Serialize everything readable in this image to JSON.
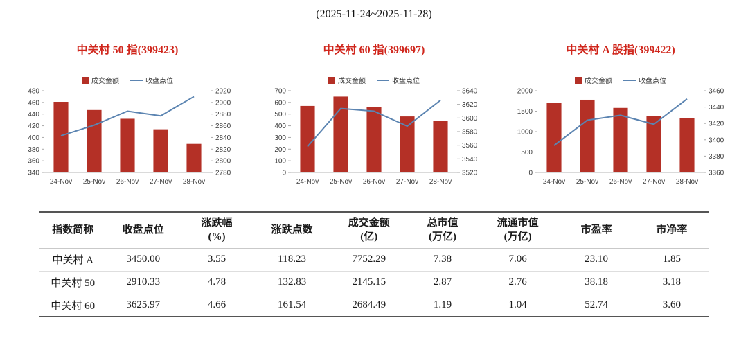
{
  "title": "(2025-11-24~2025-11-28)",
  "colors": {
    "accent_red": "#d0261c",
    "bar_red": "#b43026",
    "line_blue": "#5b84b1"
  },
  "chart_data": [
    {
      "type": "bar+line",
      "title": "中关村 50 指(399423)",
      "categories": [
        "24-Nov",
        "25-Nov",
        "26-Nov",
        "27-Nov",
        "28-Nov"
      ],
      "series": [
        {
          "name": "成交金额",
          "type": "bar",
          "axis": "left",
          "values": [
            461,
            447,
            432,
            414,
            389
          ]
        },
        {
          "name": "收盘点位",
          "type": "line",
          "axis": "right",
          "values": [
            2843,
            2861,
            2885,
            2877,
            2910
          ]
        }
      ],
      "left_axis": {
        "min": 340,
        "max": 480,
        "step": 20
      },
      "right_axis": {
        "min": 2780,
        "max": 2920,
        "step": 20
      },
      "legend_position": "top",
      "grid": false
    },
    {
      "type": "bar+line",
      "title": "中关村 60 指(399697)",
      "categories": [
        "24-Nov",
        "25-Nov",
        "26-Nov",
        "27-Nov",
        "28-Nov"
      ],
      "series": [
        {
          "name": "成交金额",
          "type": "bar",
          "axis": "left",
          "values": [
            570,
            650,
            560,
            480,
            440
          ]
        },
        {
          "name": "收盘点位",
          "type": "line",
          "axis": "right",
          "values": [
            3558,
            3614,
            3610,
            3588,
            3626
          ]
        }
      ],
      "left_axis": {
        "min": 0,
        "max": 700,
        "step": 100
      },
      "right_axis": {
        "min": 3520,
        "max": 3640,
        "step": 20
      },
      "legend_position": "top",
      "grid": false
    },
    {
      "type": "bar+line",
      "title": "中关村 A 股指(399422)",
      "categories": [
        "24-Nov",
        "25-Nov",
        "26-Nov",
        "27-Nov",
        "28-Nov"
      ],
      "series": [
        {
          "name": "成交金额",
          "type": "bar",
          "axis": "left",
          "values": [
            1700,
            1780,
            1580,
            1380,
            1330
          ]
        },
        {
          "name": "收盘点位",
          "type": "line",
          "axis": "right",
          "values": [
            3393,
            3424,
            3430,
            3419,
            3450
          ]
        }
      ],
      "left_axis": {
        "min": 0,
        "max": 2000,
        "step": 500
      },
      "right_axis": {
        "min": 3360,
        "max": 3460,
        "step": 20
      },
      "legend_position": "top",
      "grid": false
    }
  ],
  "table": {
    "headers": [
      {
        "line1": "指数简称",
        "line2": ""
      },
      {
        "line1": "收盘点位",
        "line2": ""
      },
      {
        "line1": "涨跌幅",
        "line2": "(%)"
      },
      {
        "line1": "涨跌点数",
        "line2": ""
      },
      {
        "line1": "成交金额",
        "line2": "(亿)"
      },
      {
        "line1": "总市值",
        "line2": "(万亿)"
      },
      {
        "line1": "流通市值",
        "line2": "(万亿)"
      },
      {
        "line1": "市盈率",
        "line2": ""
      },
      {
        "line1": "市净率",
        "line2": ""
      }
    ],
    "rows": [
      [
        "中关村 A",
        "3450.00",
        "3.55",
        "118.23",
        "7752.29",
        "7.38",
        "7.06",
        "23.10",
        "1.85"
      ],
      [
        "中关村 50",
        "2910.33",
        "4.78",
        "132.83",
        "2145.15",
        "2.87",
        "2.76",
        "38.18",
        "3.18"
      ],
      [
        "中关村 60",
        "3625.97",
        "4.66",
        "161.54",
        "2684.49",
        "1.19",
        "1.04",
        "52.74",
        "3.60"
      ]
    ]
  }
}
